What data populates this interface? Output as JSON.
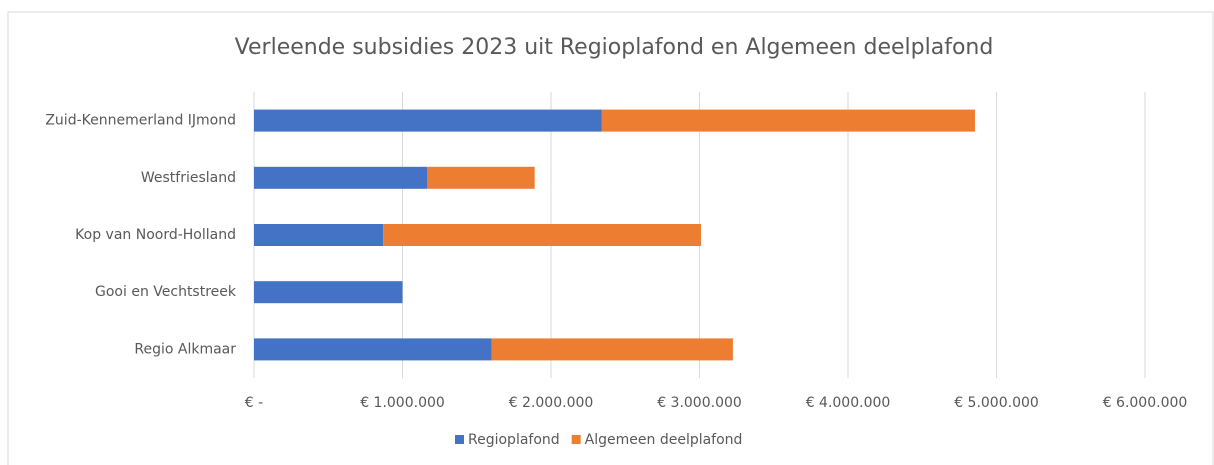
{
  "chart_data": {
    "type": "stacked-barh",
    "title": "Verleende subsidies 2023 uit Regioplafond en Algemeen deelplafond",
    "categories": [
      "Zuid-Kennemerland IJmond",
      "Westfriesland",
      "Kop van Noord-Holland",
      "Gooi en Vechtstreek",
      "Regio Alkmaar"
    ],
    "series": [
      {
        "name": "Regioplafond",
        "color": "#4472c4",
        "values": [
          2340000,
          1165000,
          870000,
          1000000,
          1600000
        ]
      },
      {
        "name": "Algemeen deelplafond",
        "color": "#ed7d31",
        "values": [
          2515000,
          725000,
          2140000,
          0,
          1625000
        ]
      }
    ],
    "xlim": [
      0,
      6000000
    ],
    "xticks": [
      {
        "value": 0,
        "label": "€ -"
      },
      {
        "value": 1000000,
        "label": "€ 1.000.000"
      },
      {
        "value": 2000000,
        "label": "€ 2.000.000"
      },
      {
        "value": 3000000,
        "label": "€ 3.000.000"
      },
      {
        "value": 4000000,
        "label": "€ 4.000.000"
      },
      {
        "value": 5000000,
        "label": "€ 5.000.000"
      },
      {
        "value": 6000000,
        "label": "€ 6.000.000"
      }
    ],
    "grid": true,
    "legend": "bottom"
  }
}
